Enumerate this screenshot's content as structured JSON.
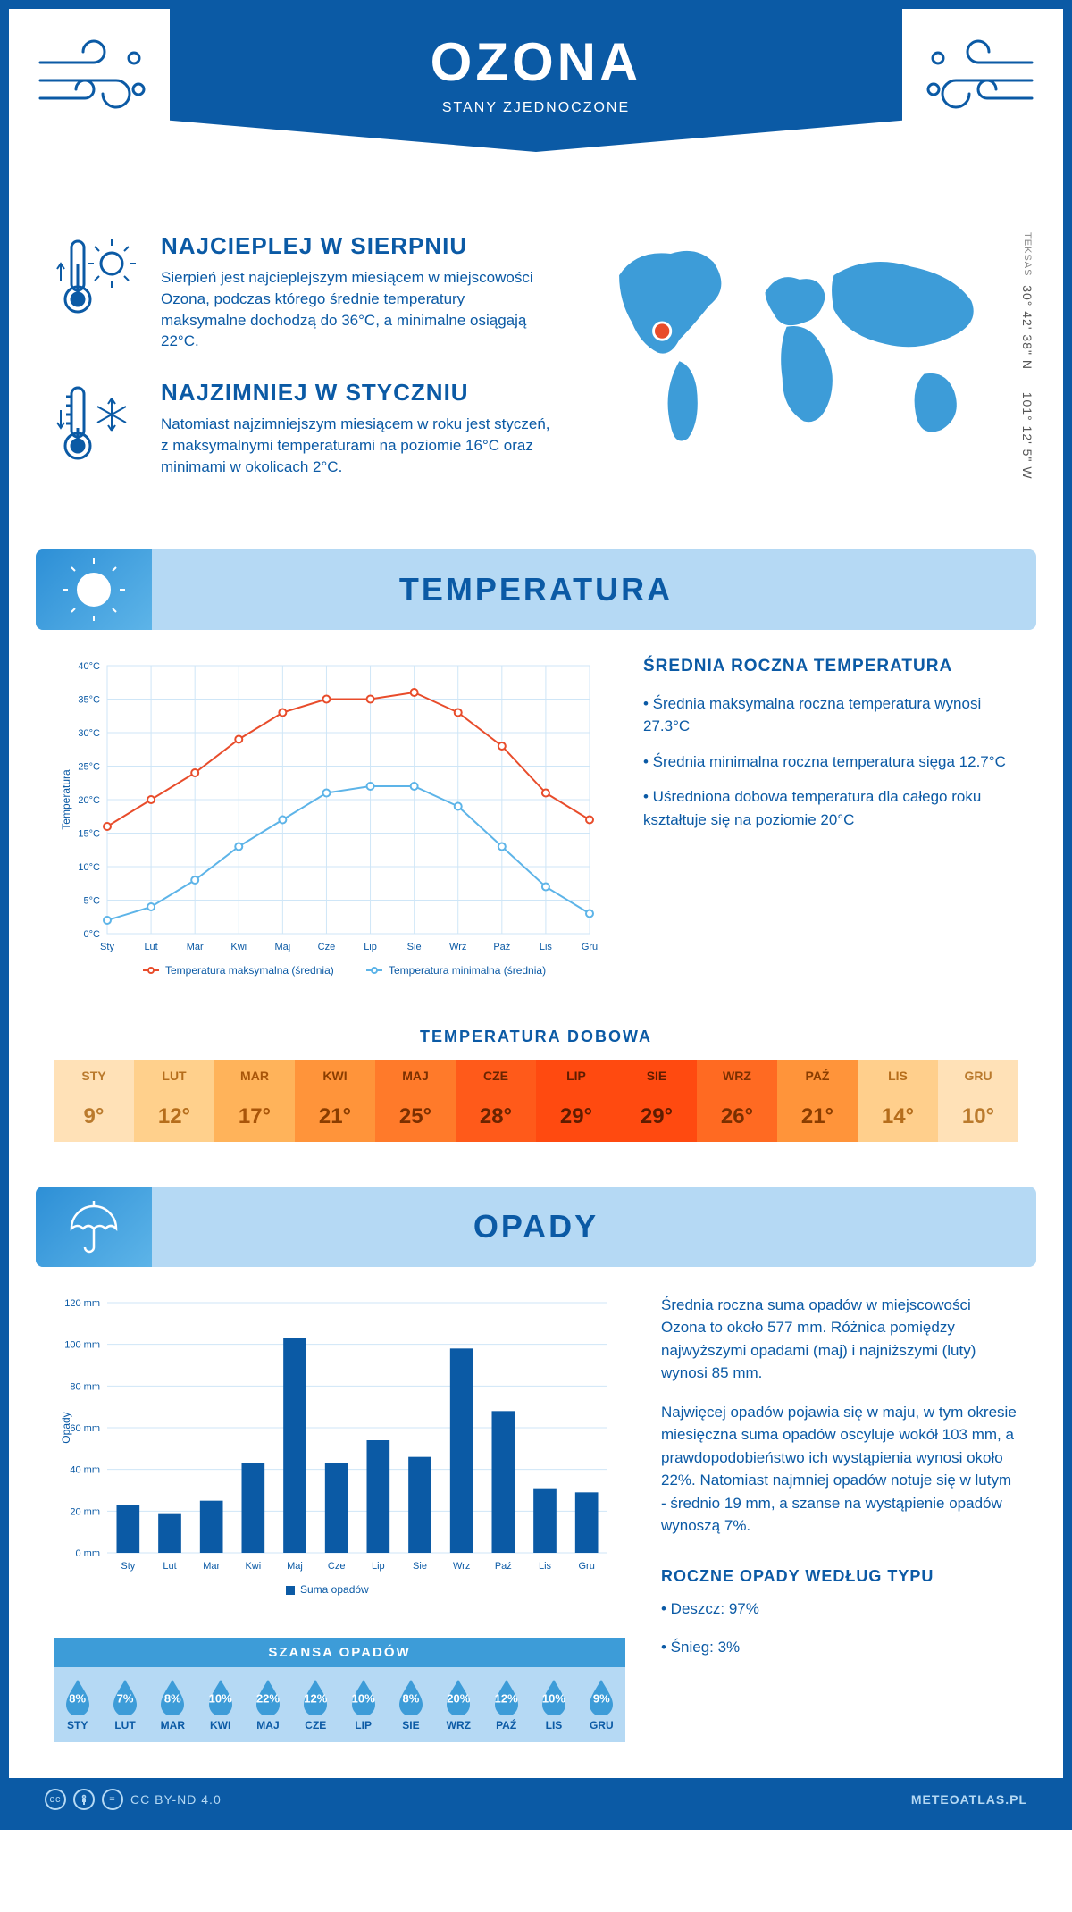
{
  "header": {
    "title": "OZONA",
    "subtitle": "STANY ZJEDNOCZONE"
  },
  "intro": {
    "hot": {
      "title": "NAJCIEPLEJ W SIERPNIU",
      "text": "Sierpień jest najcieplejszym miesiącem w miejscowości Ozona, podczas którego średnie temperatury maksymalne dochodzą do 36°C, a minimalne osiągają 22°C."
    },
    "cold": {
      "title": "NAJZIMNIEJ W STYCZNIU",
      "text": "Natomiast najzimniejszym miesiącem w roku jest styczeń, z maksymalnymi temperaturami na poziomie 16°C oraz minimami w okolicach 2°C."
    },
    "map": {
      "region": "TEKSAS",
      "coords": "30° 42' 38\" N — 101° 12' 5\" W",
      "marker_color": "#e84c2b",
      "land_color": "#3d9cd8"
    }
  },
  "temperature": {
    "section_title": "TEMPERATURA",
    "chart": {
      "months": [
        "Sty",
        "Lut",
        "Mar",
        "Kwi",
        "Maj",
        "Cze",
        "Lip",
        "Sie",
        "Wrz",
        "Paź",
        "Lis",
        "Gru"
      ],
      "max_series": [
        16,
        20,
        24,
        29,
        33,
        35,
        35,
        36,
        33,
        28,
        21,
        17
      ],
      "min_series": [
        2,
        4,
        8,
        13,
        17,
        21,
        22,
        22,
        19,
        13,
        7,
        3
      ],
      "max_color": "#e84c2b",
      "min_color": "#5db4e8",
      "grid_color": "#cfe6f7",
      "ylim": [
        0,
        40
      ],
      "ytick_step": 5,
      "y_unit": "°C",
      "y_title": "Temperatura",
      "legend_max": "Temperatura maksymalna (średnia)",
      "legend_min": "Temperatura minimalna (średnia)"
    },
    "info": {
      "title": "ŚREDNIA ROCZNA TEMPERATURA",
      "b1": "• Średnia maksymalna roczna temperatura wynosi 27.3°C",
      "b2": "• Średnia minimalna roczna temperatura sięga 12.7°C",
      "b3": "• Uśredniona dobowa temperatura dla całego roku kształtuje się na poziomie 20°C"
    },
    "daily": {
      "title": "TEMPERATURA DOBOWA",
      "months": [
        "STY",
        "LUT",
        "MAR",
        "KWI",
        "MAJ",
        "CZE",
        "LIP",
        "SIE",
        "WRZ",
        "PAŹ",
        "LIS",
        "GRU"
      ],
      "values": [
        "9°",
        "12°",
        "17°",
        "21°",
        "25°",
        "28°",
        "29°",
        "29°",
        "26°",
        "21°",
        "14°",
        "10°"
      ],
      "bg_colors": [
        "#ffe1b7",
        "#ffd08c",
        "#ffb35a",
        "#ff943a",
        "#ff7a2a",
        "#ff5a1a",
        "#ff4a10",
        "#ff4a10",
        "#ff6a22",
        "#ff943a",
        "#ffcf8c",
        "#ffe1b7"
      ],
      "text_colors": [
        "#ba7a2d",
        "#b56d1b",
        "#a85509",
        "#8a3d00",
        "#7a2f00",
        "#6a2400",
        "#5e1c00",
        "#5e1c00",
        "#7a2f00",
        "#8a3d00",
        "#b56d1b",
        "#ba7a2d"
      ]
    }
  },
  "precip": {
    "section_title": "OPADY",
    "chart": {
      "months": [
        "Sty",
        "Lut",
        "Mar",
        "Kwi",
        "Maj",
        "Cze",
        "Lip",
        "Sie",
        "Wrz",
        "Paź",
        "Lis",
        "Gru"
      ],
      "values": [
        23,
        19,
        25,
        43,
        103,
        43,
        54,
        46,
        98,
        68,
        31,
        29
      ],
      "bar_color": "#0b5aa5",
      "grid_color": "#cfe6f7",
      "ylim": [
        0,
        120
      ],
      "ytick_step": 20,
      "y_unit": " mm",
      "y_title": "Opady",
      "legend": "Suma opadów"
    },
    "info": {
      "p1": "Średnia roczna suma opadów w miejscowości Ozona to około 577 mm. Różnica pomiędzy najwyższymi opadami (maj) i najniższymi (luty) wynosi 85 mm.",
      "p2": "Najwięcej opadów pojawia się w maju, w tym okresie miesięczna suma opadów oscyluje wokół 103 mm, a prawdopodobieństwo ich wystąpienia wynosi około 22%. Natomiast najmniej opadów notuje się w lutym - średnio 19 mm, a szanse na wystąpienie opadów wynoszą 7%.",
      "type_title": "ROCZNE OPADY WEDŁUG TYPU",
      "type1": "• Deszcz: 97%",
      "type2": "• Śnieg: 3%"
    },
    "chance": {
      "title": "SZANSA OPADÓW",
      "months": [
        "STY",
        "LUT",
        "MAR",
        "KWI",
        "MAJ",
        "CZE",
        "LIP",
        "SIE",
        "WRZ",
        "PAŹ",
        "LIS",
        "GRU"
      ],
      "values": [
        "8%",
        "7%",
        "8%",
        "10%",
        "22%",
        "12%",
        "10%",
        "8%",
        "20%",
        "12%",
        "10%",
        "9%"
      ],
      "drop_color": "#3d9cd8"
    }
  },
  "footer": {
    "license": "CC BY-ND 4.0",
    "site": "METEOATLAS.PL"
  }
}
